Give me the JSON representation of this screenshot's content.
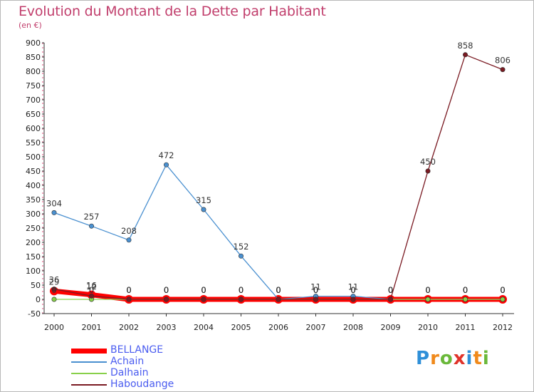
{
  "header": {
    "title": "Evolution du Montant de la Dette par Habitant",
    "subtitle": "(en €)"
  },
  "logo": {
    "text": "Proxiti",
    "letter_colors": [
      "#2e8fd8",
      "#f08a1c",
      "#6ab83a",
      "#e0332a",
      "#2e8fd8",
      "#f08a1c",
      "#6ab83a"
    ]
  },
  "colors": {
    "title": "#c13e6c",
    "legend_text": "#4a5cf0",
    "axis": "#333333",
    "grid_dash": "#e0487a"
  },
  "chart_data": {
    "type": "line",
    "title": "Evolution du Montant de la Dette par Habitant",
    "subtitle": "(en €)",
    "xlabel": "",
    "ylabel": "",
    "x": [
      "2000",
      "2001",
      "2002",
      "2003",
      "2004",
      "2005",
      "2006",
      "2007",
      "2008",
      "2009",
      "2010",
      "2011",
      "2012"
    ],
    "ylim": [
      -50,
      900
    ],
    "yticks": [
      -50,
      0,
      50,
      100,
      150,
      200,
      250,
      300,
      350,
      400,
      450,
      500,
      550,
      600,
      650,
      700,
      750,
      800,
      850,
      900
    ],
    "legend_position": "bottom-left",
    "series": [
      {
        "name": "BELLANGE",
        "color": "#ff0000",
        "thick": true,
        "values": [
          29,
          16,
          0,
          0,
          0,
          0,
          0,
          0,
          0,
          0,
          0,
          0,
          0
        ],
        "labels": [
          "29",
          "16",
          "0",
          "0",
          "0",
          "0",
          "0",
          "0",
          "0",
          "0",
          "0",
          "0",
          "0"
        ]
      },
      {
        "name": "Achain",
        "color": "#4a90d0",
        "thick": false,
        "values": [
          304,
          257,
          208,
          472,
          315,
          152,
          0,
          11,
          11,
          0,
          0,
          0,
          0
        ],
        "labels": [
          "304",
          "257",
          "208",
          "472",
          "315",
          "152",
          "0",
          "11",
          "11",
          "0",
          "0",
          "0",
          "0"
        ]
      },
      {
        "name": "Dalhain",
        "color": "#88d04a",
        "thick": false,
        "values": [
          0,
          0,
          0,
          0,
          0,
          0,
          0,
          0,
          0,
          0,
          0,
          0,
          0
        ],
        "labels": [
          "0",
          "0",
          "0",
          "0",
          "0",
          "0",
          "0",
          "0",
          "0",
          "0",
          "0",
          "0",
          "0"
        ]
      },
      {
        "name": "Haboudange",
        "color": "#7a1a22",
        "thick": false,
        "values": [
          36,
          12,
          0,
          0,
          0,
          0,
          0,
          0,
          0,
          0,
          450,
          858,
          806
        ],
        "labels": [
          "36",
          "12",
          "0",
          "0",
          "0",
          "0",
          "0",
          "0",
          "0",
          "0",
          "450",
          "858",
          "806"
        ]
      }
    ]
  }
}
